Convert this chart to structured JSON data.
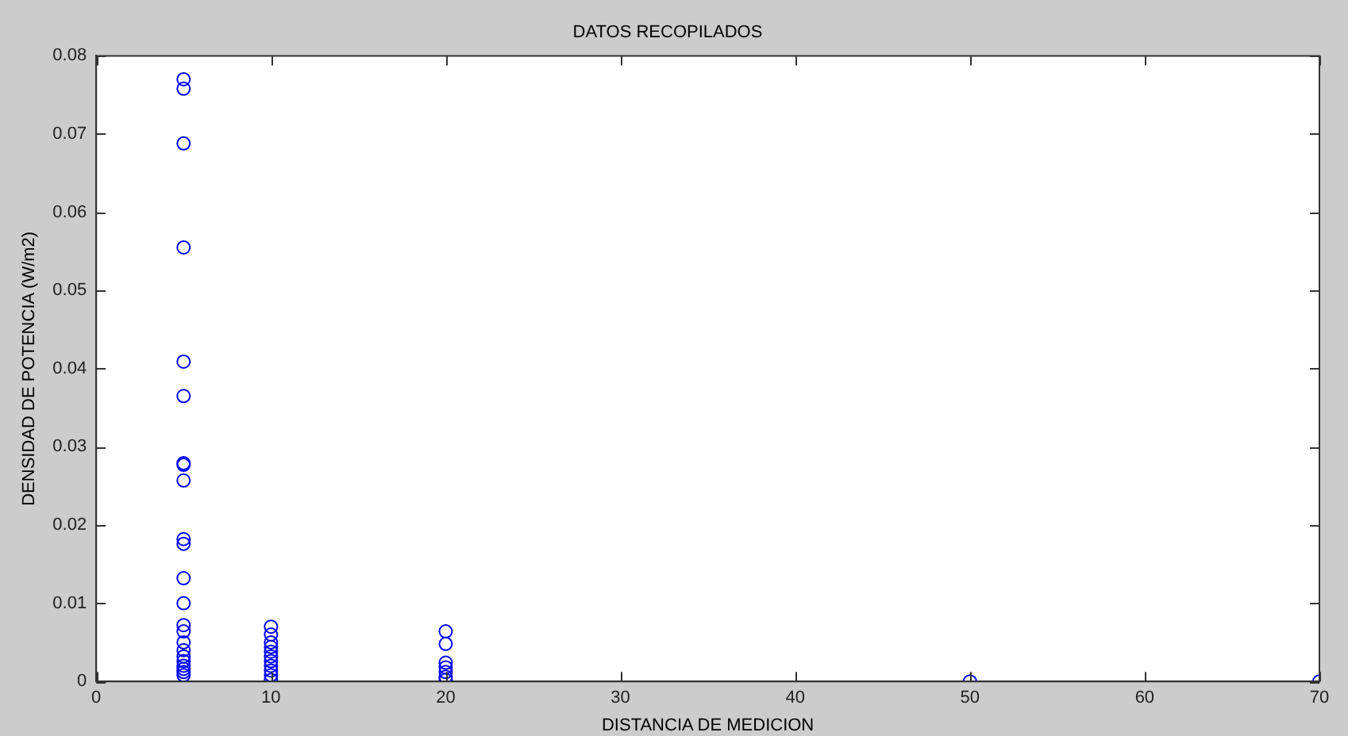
{
  "chart_data": {
    "type": "scatter",
    "title": "DATOS RECOPILADOS",
    "xlabel": "DISTANCIA DE MEDICION",
    "ylabel": "DENSIDAD DE POTENCIA (W/m2)",
    "xlim": [
      0,
      70
    ],
    "xticks": [
      0,
      10,
      20,
      30,
      40,
      50,
      60,
      70
    ],
    "ylim": [
      0,
      0.08
    ],
    "yticks": [
      0,
      0.01,
      0.02,
      0.03,
      0.04,
      0.05,
      0.06,
      0.07,
      0.08
    ],
    "grid": false,
    "legend": false,
    "marker": "circle",
    "series": [
      {
        "color": "#0000ff",
        "x": [
          5,
          5,
          5,
          5,
          5,
          5,
          5,
          5,
          5,
          5,
          5,
          5,
          5,
          5,
          5,
          5,
          5,
          5,
          5,
          5,
          5,
          5,
          5,
          10,
          10,
          10,
          10,
          10,
          10,
          10,
          10,
          10,
          10,
          10,
          20,
          20,
          20,
          20,
          20,
          20,
          20,
          50,
          70
        ],
        "values": [
          0.077,
          0.0758,
          0.0688,
          0.0555,
          0.0409,
          0.0365,
          0.0279,
          0.0277,
          0.0257,
          0.0182,
          0.0176,
          0.0132,
          0.01,
          0.0072,
          0.0064,
          0.005,
          0.004,
          0.0032,
          0.0026,
          0.002,
          0.0016,
          0.0012,
          0.0008,
          0.007,
          0.006,
          0.005,
          0.0044,
          0.0038,
          0.0032,
          0.0026,
          0.002,
          0.0014,
          0.0008,
          0.0002,
          0.0064,
          0.0048,
          0.0024,
          0.0018,
          0.0012,
          0.0006,
          0.0002,
          0,
          0
        ]
      }
    ]
  }
}
